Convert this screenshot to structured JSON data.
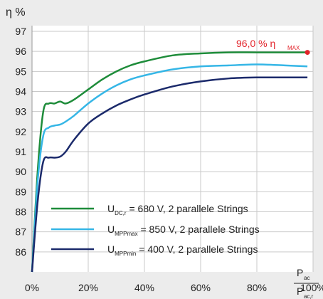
{
  "chart_data": {
    "type": "line",
    "ylabel": "η %",
    "xlabel": {
      "numerator": "P",
      "numerator_sub": "ac",
      "denominator": "P",
      "denominator_sub": "ac,r"
    },
    "xlim": [
      0,
      100
    ],
    "ylim": [
      85,
      97
    ],
    "x_ticks": [
      "0%",
      "20%",
      "40%",
      "60%",
      "80%",
      "100%"
    ],
    "x_tick_values": [
      0,
      20,
      40,
      60,
      80,
      100
    ],
    "y_ticks": [
      "86",
      "87",
      "88",
      "89",
      "90",
      "91",
      "92",
      "93",
      "94",
      "95",
      "96",
      "97"
    ],
    "y_tick_values": [
      86,
      87,
      88,
      89,
      90,
      91,
      92,
      93,
      94,
      95,
      96,
      97
    ],
    "grid": true,
    "legend_position": "bottom-left",
    "series": [
      {
        "name": "U_DC,r = 680 V, 2 parallele Strings",
        "legend": {
          "main": "U",
          "sub": "DC,r",
          "rest": " = 680 V, 2 parallele Strings"
        },
        "color": "#1e8c3a",
        "x": [
          0,
          2,
          4,
          6,
          8,
          10,
          12,
          15,
          20,
          25,
          30,
          35,
          40,
          50,
          60,
          70,
          80,
          90,
          98
        ],
        "y": [
          85,
          90.0,
          93.0,
          93.4,
          93.4,
          93.5,
          93.4,
          93.6,
          94.1,
          94.6,
          95.0,
          95.3,
          95.5,
          95.8,
          95.9,
          95.95,
          95.95,
          95.95,
          95.95
        ]
      },
      {
        "name": "U_MPPmax = 850 V, 2 parallele Strings",
        "legend": {
          "main": "U",
          "sub": "MPPmax",
          "rest": " = 850 V, 2 parallele Strings"
        },
        "color": "#35b6e6",
        "x": [
          0,
          2,
          4,
          6,
          8,
          10,
          12,
          15,
          20,
          25,
          30,
          35,
          40,
          50,
          60,
          70,
          80,
          90,
          98
        ],
        "y": [
          85,
          89.5,
          91.8,
          92.2,
          92.3,
          92.35,
          92.5,
          92.8,
          93.4,
          93.9,
          94.3,
          94.6,
          94.8,
          95.1,
          95.25,
          95.3,
          95.35,
          95.3,
          95.25
        ]
      },
      {
        "name": "U_MPPmin = 400 V, 2 parallele Strings",
        "legend": {
          "main": "U",
          "sub": "MPPmin",
          "rest": " = 400 V, 2 parallele Strings"
        },
        "color": "#1b2a6b",
        "x": [
          0,
          2,
          4,
          6,
          8,
          10,
          12,
          15,
          20,
          25,
          30,
          35,
          40,
          50,
          60,
          70,
          80,
          90,
          98
        ],
        "y": [
          85,
          88.5,
          90.5,
          90.7,
          90.7,
          90.75,
          91.0,
          91.6,
          92.4,
          92.9,
          93.3,
          93.6,
          93.85,
          94.25,
          94.5,
          94.65,
          94.7,
          94.7,
          94.7
        ]
      }
    ],
    "annotation": {
      "text": "96,0 % η",
      "sub": "MAX",
      "x": 98,
      "y": 95.95,
      "color": "#e2232a"
    }
  }
}
